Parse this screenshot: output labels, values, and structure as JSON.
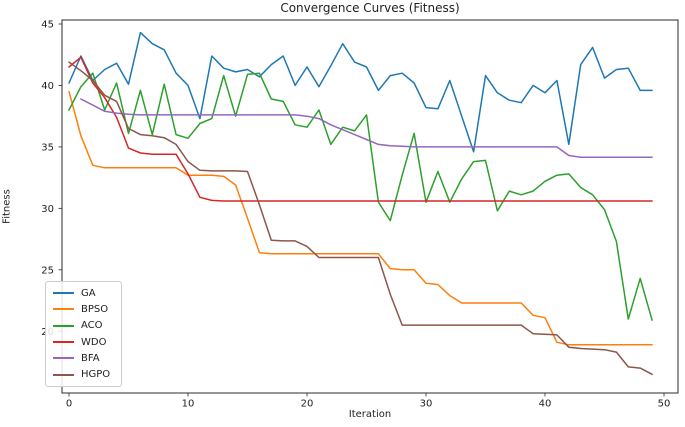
{
  "chart_data": {
    "type": "line",
    "title": "Convergence Curves (Fitness)",
    "xlabel": "Iteration",
    "ylabel": "Fitness",
    "x_ticks": [
      0,
      10,
      20,
      30,
      40,
      50
    ],
    "y_ticks": [
      20,
      25,
      30,
      35,
      40,
      45
    ],
    "xlim": [
      -0.6,
      51.2
    ],
    "ylim": [
      15.0,
      45.3
    ],
    "grid": false,
    "legend_position": "lower left",
    "x": [
      0,
      1,
      2,
      3,
      4,
      5,
      6,
      7,
      8,
      9,
      10,
      11,
      12,
      13,
      14,
      15,
      16,
      17,
      18,
      19,
      20,
      21,
      22,
      23,
      24,
      25,
      26,
      27,
      28,
      29,
      30,
      31,
      32,
      33,
      34,
      35,
      36,
      37,
      38,
      39,
      40,
      41,
      42,
      43,
      44,
      45,
      46,
      47,
      48,
      49
    ],
    "series": [
      {
        "name": "GA",
        "color": "#1f77b4",
        "start_x": 0,
        "values": [
          40.2,
          42.4,
          40.4,
          41.3,
          41.8,
          40.1,
          44.3,
          43.4,
          42.9,
          41.0,
          40.0,
          37.3,
          42.4,
          41.4,
          41.1,
          41.3,
          40.7,
          41.7,
          42.4,
          40.0,
          41.5,
          39.9,
          41.6,
          43.4,
          41.9,
          41.5,
          39.6,
          40.8,
          41.0,
          40.2,
          38.2,
          38.1,
          40.4,
          37.5,
          34.6,
          40.8,
          39.4,
          38.8,
          38.6,
          40.0,
          39.4,
          40.4,
          35.2,
          41.7,
          43.1,
          40.6,
          41.3,
          41.4,
          39.6,
          39.6
        ]
      },
      {
        "name": "BPSO",
        "color": "#ff7f0e",
        "start_x": 0,
        "values": [
          39.5,
          35.9,
          33.5,
          33.3,
          33.3,
          33.3,
          33.3,
          33.3,
          33.3,
          33.3,
          32.7,
          32.7,
          32.7,
          32.6,
          31.9,
          29.2,
          26.4,
          26.3,
          26.3,
          26.3,
          26.3,
          26.3,
          26.3,
          26.3,
          26.3,
          26.3,
          26.3,
          25.1,
          25.0,
          25.0,
          23.9,
          23.8,
          22.9,
          22.3,
          22.3,
          22.3,
          22.3,
          22.3,
          22.3,
          21.3,
          21.1,
          19.1,
          18.9,
          18.9,
          18.9,
          18.9,
          18.9,
          18.9,
          18.9,
          18.9
        ]
      },
      {
        "name": "ACO",
        "color": "#2ca02c",
        "start_x": 0,
        "values": [
          38.0,
          39.9,
          41.0,
          38.0,
          40.2,
          36.1,
          39.6,
          36.0,
          40.1,
          36.0,
          35.7,
          36.9,
          37.3,
          40.8,
          37.5,
          40.9,
          41.0,
          38.9,
          38.7,
          36.8,
          36.6,
          38.0,
          35.2,
          36.6,
          36.3,
          37.6,
          30.5,
          29.0,
          32.7,
          36.1,
          30.5,
          33.0,
          30.5,
          32.4,
          33.8,
          33.9,
          29.8,
          31.4,
          31.1,
          31.4,
          32.2,
          32.7,
          32.8,
          31.7,
          31.1,
          29.9,
          27.3,
          21.0,
          24.3,
          20.9
        ]
      },
      {
        "name": "WDO",
        "color": "#d62728",
        "start_x": 0,
        "values": [
          41.5,
          42.3,
          40.2,
          39.0,
          37.4,
          34.9,
          34.5,
          34.4,
          34.4,
          34.4,
          32.8,
          30.9,
          30.65,
          30.6,
          30.6,
          30.6,
          30.6,
          30.6,
          30.6,
          30.6,
          30.6,
          30.6,
          30.6,
          30.6,
          30.6,
          30.6,
          30.6,
          30.6,
          30.6,
          30.6,
          30.6,
          30.6,
          30.6,
          30.6,
          30.6,
          30.6,
          30.6,
          30.6,
          30.6,
          30.6,
          30.6,
          30.6,
          30.6,
          30.6,
          30.6,
          30.6,
          30.6,
          30.6,
          30.6,
          30.6
        ]
      },
      {
        "name": "BFA",
        "color": "#9467bd",
        "start_x": 1,
        "values": [
          38.9,
          38.4,
          37.9,
          37.75,
          37.65,
          37.6,
          37.6,
          37.6,
          37.6,
          37.6,
          37.6,
          37.6,
          37.6,
          37.6,
          37.6,
          37.6,
          37.6,
          37.6,
          37.6,
          37.5,
          37.3,
          36.8,
          36.4,
          36.0,
          35.6,
          35.2,
          35.1,
          35.05,
          35.0,
          35.0,
          35.0,
          35.0,
          35.0,
          35.0,
          35.0,
          35.0,
          35.0,
          35.0,
          35.0,
          35.0,
          35.0,
          34.3,
          34.15,
          34.15,
          34.15,
          34.15,
          34.15,
          34.15,
          34.15
        ]
      },
      {
        "name": "HGPO",
        "color": "#8c564b",
        "start_x": 0,
        "values": [
          41.9,
          41.2,
          40.4,
          39.2,
          38.7,
          36.5,
          36.0,
          35.9,
          35.75,
          35.2,
          33.8,
          33.1,
          33.05,
          33.05,
          33.05,
          33.0,
          30.3,
          27.4,
          27.35,
          27.35,
          26.9,
          26.0,
          26.0,
          26.0,
          26.0,
          26.0,
          26.0,
          23.0,
          20.5,
          20.5,
          20.5,
          20.5,
          20.5,
          20.5,
          20.5,
          20.5,
          20.5,
          20.5,
          20.5,
          19.8,
          19.75,
          19.7,
          18.7,
          18.6,
          18.55,
          18.5,
          18.3,
          17.1,
          17.0,
          16.5
        ]
      }
    ]
  },
  "legend": {
    "entries": [
      "GA",
      "BPSO",
      "ACO",
      "WDO",
      "BFA",
      "HGPO"
    ]
  }
}
